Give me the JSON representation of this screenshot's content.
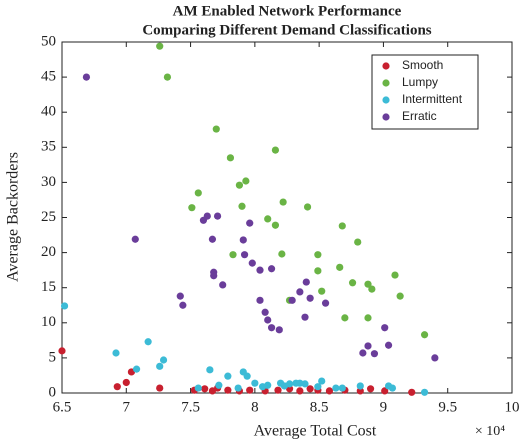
{
  "chart_data": {
    "type": "scatter",
    "title": [
      "AM Enabled Network Performance",
      "Comparing Different Demand Classifications"
    ],
    "xlabel": "Average Total Cost",
    "ylabel": "Average Backorders",
    "x_exponent": "× 10⁴",
    "xlim": [
      6.5,
      10
    ],
    "ylim": [
      0,
      50
    ],
    "xticks": [
      6.5,
      7,
      7.5,
      8,
      8.5,
      9,
      9.5,
      10
    ],
    "yticks": [
      0,
      5,
      10,
      15,
      20,
      25,
      30,
      35,
      40,
      45,
      50
    ],
    "legend_position": "upper right",
    "series": [
      {
        "name": "Smooth",
        "color": "#c8202f",
        "x": [
          6.5,
          6.93,
          7.0,
          7.04,
          7.26,
          7.53,
          7.61,
          7.67,
          7.71,
          7.79,
          7.88,
          7.96,
          8.08,
          8.18,
          8.27,
          8.35,
          8.43,
          8.49,
          8.58,
          8.7,
          8.82,
          8.9,
          9.01,
          9.22
        ],
        "values": [
          6.0,
          0.9,
          1.5,
          3.0,
          0.7,
          0.4,
          0.6,
          0.3,
          0.7,
          0.4,
          0.3,
          0.4,
          0.3,
          0.4,
          0.6,
          0.3,
          0.6,
          0.4,
          0.3,
          0.4,
          0.3,
          0.6,
          0.3,
          0.1
        ]
      },
      {
        "name": "Lumpy",
        "color": "#6ab445",
        "x": [
          7.26,
          7.32,
          7.7,
          7.81,
          7.88,
          7.93,
          7.9,
          7.56,
          7.51,
          7.83,
          8.16,
          8.1,
          8.22,
          8.16,
          8.21,
          8.41,
          8.49,
          8.49,
          8.52,
          8.27,
          8.66,
          8.68,
          8.76,
          8.7,
          8.8,
          8.88,
          8.88,
          8.91,
          9.09,
          9.13,
          9.32
        ],
        "values": [
          49.4,
          45.0,
          37.6,
          33.5,
          29.6,
          30.2,
          26.6,
          28.5,
          26.4,
          19.7,
          34.6,
          24.8,
          27.2,
          23.9,
          19.8,
          26.5,
          19.7,
          17.4,
          14.5,
          13.2,
          17.9,
          23.8,
          15.7,
          10.7,
          21.5,
          10.7,
          15.5,
          14.8,
          16.8,
          13.8,
          8.3
        ]
      },
      {
        "name": "Intermittent",
        "color": "#3cbbd6",
        "x": [
          6.52,
          6.92,
          7.08,
          7.17,
          7.26,
          7.29,
          7.56,
          7.65,
          7.72,
          7.79,
          7.87,
          7.91,
          7.94,
          8.0,
          8.06,
          8.1,
          8.2,
          8.23,
          8.27,
          8.32,
          8.35,
          8.39,
          8.49,
          8.52,
          8.63,
          8.68,
          8.82,
          9.04,
          9.07,
          9.32
        ],
        "values": [
          12.4,
          5.7,
          3.4,
          7.3,
          3.8,
          4.7,
          0.7,
          3.3,
          1.1,
          2.4,
          0.7,
          3.0,
          2.4,
          1.4,
          0.9,
          1.1,
          1.4,
          1.0,
          1.3,
          1.4,
          1.4,
          1.3,
          0.9,
          1.7,
          0.7,
          0.7,
          1.0,
          1.0,
          0.7,
          0.1
        ]
      },
      {
        "name": "Erratic",
        "color": "#6a3d9a",
        "x": [
          6.69,
          7.07,
          7.42,
          7.44,
          7.6,
          7.63,
          7.67,
          7.68,
          7.68,
          7.71,
          7.75,
          7.91,
          7.96,
          7.92,
          7.98,
          8.04,
          8.13,
          8.04,
          8.08,
          8.1,
          8.13,
          8.19,
          8.29,
          8.35,
          8.4,
          8.43,
          8.39,
          8.55,
          8.84,
          8.88,
          8.93,
          9.01,
          9.04,
          9.4
        ],
        "values": [
          45.0,
          21.9,
          13.8,
          12.5,
          24.6,
          25.2,
          21.9,
          17.2,
          16.7,
          25.2,
          15.4,
          21.8,
          24.2,
          19.7,
          18.5,
          17.5,
          17.7,
          13.2,
          11.5,
          10.4,
          9.3,
          9.0,
          13.2,
          14.4,
          15.8,
          13.5,
          10.8,
          12.8,
          5.7,
          6.7,
          5.6,
          9.3,
          6.8,
          5.0
        ]
      }
    ]
  }
}
